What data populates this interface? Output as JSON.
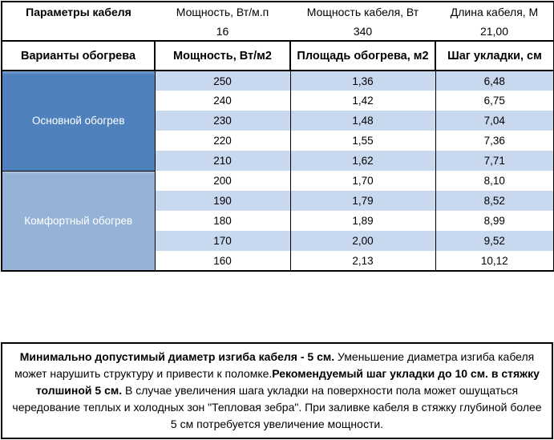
{
  "cable": {
    "title": "Параметры кабеля",
    "headers": [
      "Мощность, Вт/м.п",
      "Мощность кабеля, Вт",
      "Длина кабеля, М"
    ],
    "values": [
      "16",
      "340",
      "21,00"
    ]
  },
  "heating": {
    "title": "Варианты обогрева",
    "columns": [
      "Мощность, Вт/м2",
      "Площадь обогрева, м2",
      "Шаг укладки, см"
    ],
    "groups": [
      {
        "label": "Основной обогрев",
        "rows": [
          [
            "250",
            "1,36",
            "6,48"
          ],
          [
            "240",
            "1,42",
            "6,75"
          ],
          [
            "230",
            "1,48",
            "7,04"
          ],
          [
            "220",
            "1,55",
            "7,36"
          ],
          [
            "210",
            "1,62",
            "7,71"
          ]
        ]
      },
      {
        "label": "Комфортный обогрев",
        "rows": [
          [
            "200",
            "1,70",
            "8,10"
          ],
          [
            "190",
            "1,79",
            "8,52"
          ],
          [
            "180",
            "1,89",
            "8,99"
          ],
          [
            "170",
            "2,00",
            "9,52"
          ],
          [
            "160",
            "2,13",
            "10,12"
          ]
        ]
      }
    ]
  },
  "note": {
    "seg1": "Минимально допустимый диаметр изгиба кабеля - 5 см.",
    "seg2": " Уменьшение диаметра изгиба кабеля может нарушить структуру и привести к поломке.",
    "seg3": "Рекомендуемый шаг укладки до 10 см. в стяжку толшиной 5 см.",
    "seg4": " В  случае увеличения шага укладки на поверхности пола может ошущаться чередование теплых и холодных зон \"Тепловая зебра\". При заливке кабеля в стяжку глубиной более 5 см потребуется увеличение мощности."
  },
  "colors": {
    "group_main": "#4f81bd",
    "group_comfort": "#95b3d7",
    "row_stripe": "#c8d8ee",
    "border": "#000000"
  }
}
